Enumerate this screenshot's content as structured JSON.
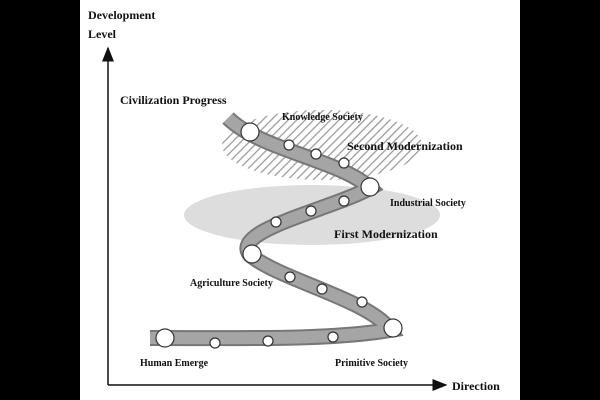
{
  "axes": {
    "y_label": [
      "Development",
      "Level"
    ],
    "x_label": "Direction"
  },
  "title": "Civilization Progress",
  "regions": [
    "Second Modernization",
    "First Modernization"
  ],
  "nodes": [
    {
      "label": "Human Emerge"
    },
    {
      "label": "Primitive Society"
    },
    {
      "label": "Agriculture Society"
    },
    {
      "label": "Industrial Society"
    },
    {
      "label": "Knowledge Society"
    }
  ]
}
